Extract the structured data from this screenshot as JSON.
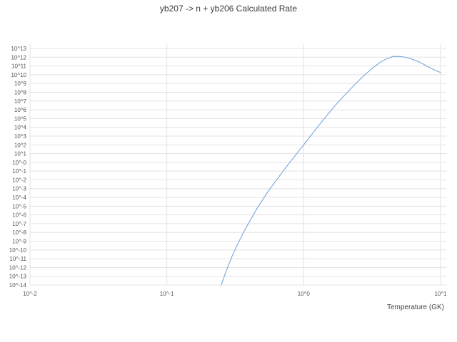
{
  "chart_data": {
    "type": "line",
    "title": "yb207 -> n + yb206 Calculated Rate",
    "xlabel": "Temperature (GK)",
    "ylabel": "",
    "x_scale": "log",
    "y_scale": "log",
    "xlim_log10": [
      -2,
      1
    ],
    "ylim_log10": [
      -14,
      13
    ],
    "x_tick_labels": [
      "10^-2",
      "10^-1",
      "10^0",
      "10^1"
    ],
    "y_tick_labels": [
      "10^13",
      "10^12",
      "10^11",
      "10^10",
      "10^9",
      "10^8",
      "10^7",
      "10^6",
      "10^5",
      "10^4",
      "10^3",
      "10^2",
      "10^1",
      "10^-0",
      "10^-1",
      "10^-2",
      "10^-3",
      "10^-4",
      "10^-5",
      "10^-6",
      "10^-7",
      "10^-8",
      "10^-9",
      "10^-10",
      "10^-11",
      "10^-12",
      "10^-13",
      "10^-14"
    ],
    "grid": true,
    "legend": "none",
    "line_color": "#6a9fd8",
    "grid_color": "#e3e3e3",
    "series": [
      {
        "name": "calculated rate",
        "x": [
          0.25,
          0.27,
          0.3,
          0.33,
          0.36,
          0.4,
          0.45,
          0.5,
          0.55,
          0.6,
          0.7,
          0.8,
          0.9,
          1.0,
          1.2,
          1.4,
          1.7,
          2.0,
          2.4,
          2.8,
          3.2,
          3.6,
          4.0,
          4.5,
          5.0,
          5.5,
          6.0,
          6.5,
          7.0,
          7.5,
          8.0,
          8.5,
          9.0,
          9.5,
          10.0
        ],
        "log10_y": [
          -14,
          -12.5,
          -10.7,
          -9.3,
          -8.1,
          -6.8,
          -5.4,
          -4.3,
          -3.3,
          -2.5,
          -1.1,
          0.1,
          1.1,
          2.0,
          3.6,
          4.9,
          6.5,
          7.7,
          9.0,
          10.0,
          10.8,
          11.4,
          11.8,
          12.1,
          12.08,
          12.0,
          11.85,
          11.65,
          11.45,
          11.2,
          10.95,
          10.75,
          10.55,
          10.4,
          10.25
        ]
      }
    ]
  }
}
